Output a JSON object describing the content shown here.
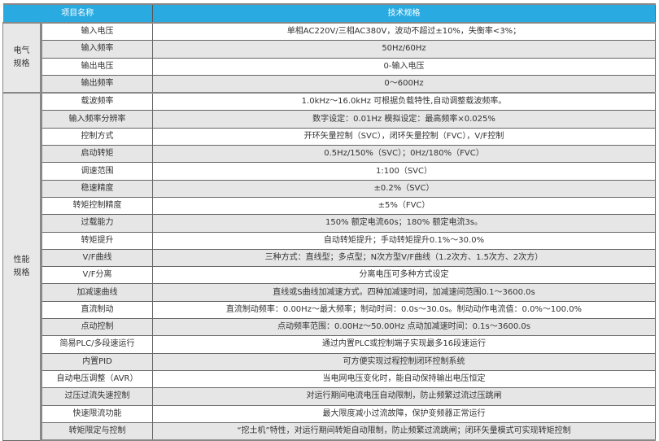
{
  "header": {
    "item_name": "项目名称",
    "spec": "技术规格"
  },
  "colors": {
    "header_bg": "#29abe2",
    "alt_row": "#e6e6e6"
  },
  "groups": [
    {
      "label": "电气\n规格",
      "rows": [
        {
          "name": "输入电压",
          "spec": "单相AC220V/三相AC380V，波动不超过±10%，失衡率<3%；"
        },
        {
          "name": "输入频率",
          "spec": "50Hz/60Hz"
        },
        {
          "name": "输出电压",
          "spec": "0-输入电压"
        },
        {
          "name": "输出频率",
          "spec": "0～600Hz"
        }
      ]
    },
    {
      "label": "性能\n规格",
      "rows": [
        {
          "name": "载波频率",
          "spec": "1.0kHz～16.0kHz 可根据负载特性,自动调整载波频率。"
        },
        {
          "name": "输入频率分辨率",
          "spec": "数字设定：0.01Hz 模拟设定：最高频率×0.025%"
        },
        {
          "name": "控制方式",
          "spec": "开环矢量控制（SVC），闭环矢量控制（FVC），V/F控制"
        },
        {
          "name": "启动转矩",
          "spec": "0.5Hz/150%（SVC）；0Hz/180%（FVC）"
        },
        {
          "name": "调速范围",
          "spec": "1:100（SVC）"
        },
        {
          "name": "稳速精度",
          "spec": "±0.2%（SVC）"
        },
        {
          "name": "转矩控制精度",
          "spec": "±5%（FVC）"
        },
        {
          "name": "过载能力",
          "spec": "150% 额定电流60s；180% 额定电流3s。"
        },
        {
          "name": "转矩提升",
          "spec": "自动转矩提升；手动转矩提升0.1%～30.0%"
        },
        {
          "name": "V/F曲线",
          "spec": "三种方式：直线型；多点型；N次方型V/F曲线（1.2次方、1.5次方、2次方）"
        },
        {
          "name": "V/F分离",
          "spec": "分离电压可多种方式设定"
        },
        {
          "name": "加减速曲线",
          "spec": "直线或S曲线加减速方式。四种加减速时间，加减速间范围0.1～3600.0s"
        },
        {
          "name": "直流制动",
          "spec": "直流制动频率：0.00Hz～最大频率；制动时间：0.0s～30.0s。制动动作电流值：0.0%～100.0%"
        },
        {
          "name": "点动控制",
          "spec": "点动频率范围：0.00Hz～50.00Hz 点动加减速时间：0.1s～3600.0s"
        },
        {
          "name": "简易PLC/多段速运行",
          "spec": "通过内置PLC或控制端子实现最多16段速运行"
        },
        {
          "name": "内置PID",
          "spec": "可方便实现过程控制闭环控制系统"
        },
        {
          "name": "自动电压调整（AVR）",
          "spec": "当电网电压变化时，能自动保持输出电压恒定"
        },
        {
          "name": "过压过流失速控制",
          "spec": "对运行期间电流电压自动限制，防止频繁过流过压跳闸"
        },
        {
          "name": "快速限流功能",
          "spec": "最大限度减小过流故障，保护变频器正常运行"
        },
        {
          "name": "转矩限定与控制",
          "spec": "“挖土机”特性，对运行期间转矩自动限制，防止频繁过流跳闸；闭环矢量模式可实现转矩控制"
        }
      ]
    }
  ]
}
